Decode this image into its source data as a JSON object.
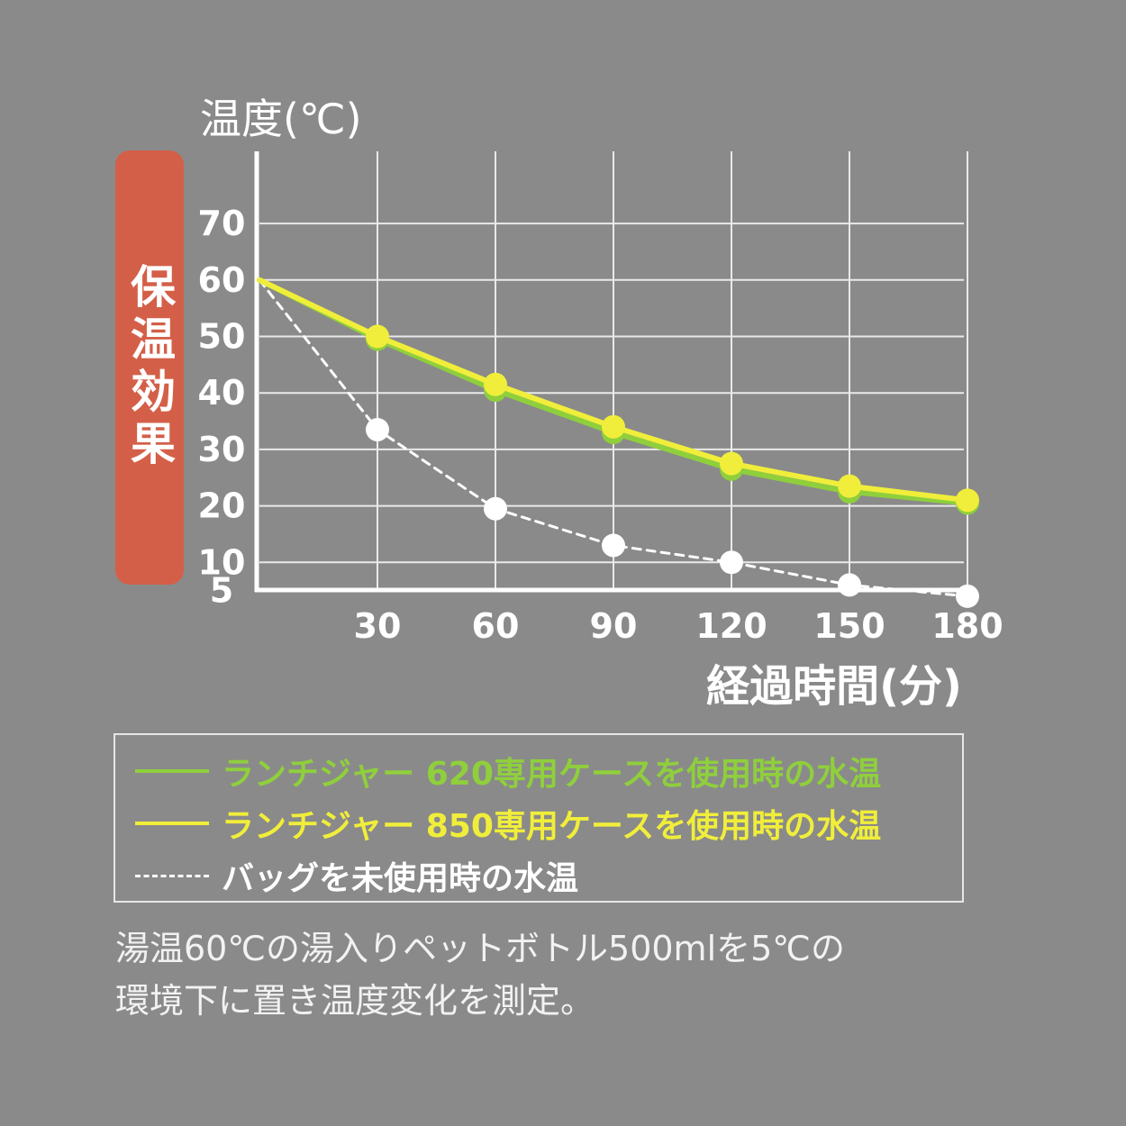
{
  "badge": {
    "label": "保温効果"
  },
  "legend": {
    "items": [
      {
        "label": "ランチジャー 620専用ケースを使用時の水温",
        "color": "#8fcf3c",
        "style": "solid"
      },
      {
        "label": "ランチジャー 850専用ケースを使用時の水温",
        "color": "#f0ee3a",
        "style": "solid"
      },
      {
        "label": "バッグを未使用時の水温",
        "color": "#ffffff",
        "style": "dashed"
      }
    ]
  },
  "note": {
    "line1": "湯温60℃の湯入りペットボトル500mlを5℃の",
    "line2": "環境下に置き温度変化を測定。"
  },
  "chart_data": {
    "type": "line",
    "ylabel": "温度(℃)",
    "xlabel": "経過時間(分)",
    "x": [
      0,
      30,
      60,
      90,
      120,
      150,
      180
    ],
    "xticks": [
      30,
      60,
      90,
      120,
      150,
      180
    ],
    "yticks": [
      5,
      10,
      20,
      30,
      40,
      50,
      60,
      70
    ],
    "xlim": [
      0,
      180
    ],
    "ylim": [
      0,
      70
    ],
    "grid": true,
    "series": [
      {
        "name": "ランチジャー 620専用ケースを使用時の水温",
        "color": "#8fcf3c",
        "style": "solid",
        "values": [
          60,
          49.5,
          40.5,
          33,
          26.5,
          22.5,
          20.5
        ]
      },
      {
        "name": "ランチジャー 850専用ケースを使用時の水温",
        "color": "#f0ee3a",
        "style": "solid",
        "values": [
          60,
          50,
          41.5,
          34,
          27.5,
          23.5,
          21
        ]
      },
      {
        "name": "バッグを未使用時の水温",
        "color": "#ffffff",
        "style": "dashed",
        "values": [
          60,
          33.5,
          19.5,
          13,
          10,
          6,
          4
        ]
      }
    ]
  }
}
